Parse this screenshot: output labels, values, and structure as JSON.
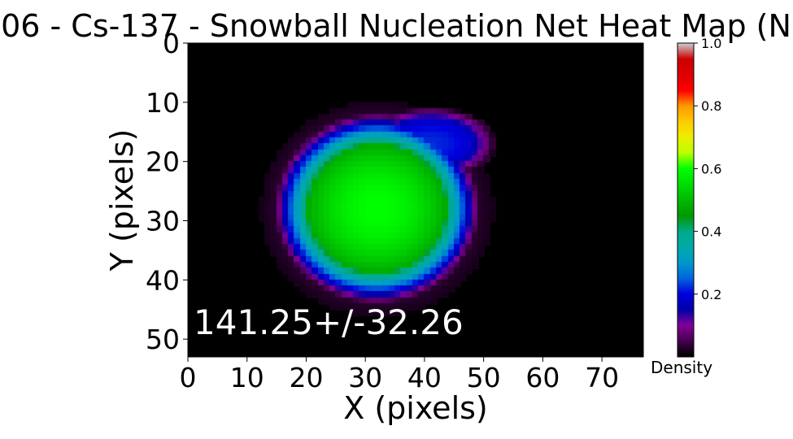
{
  "chart_data": {
    "type": "heatmap",
    "title": "06 - Cs-137 - Snowball Nucleation Net Heat Map (N",
    "xlabel": "X (pixels)",
    "ylabel": "Y (pixels)",
    "xlim": [
      0,
      77
    ],
    "ylim": [
      53,
      0
    ],
    "x_ticks": [
      0,
      10,
      20,
      30,
      40,
      50,
      60,
      70
    ],
    "y_ticks": [
      0,
      10,
      20,
      30,
      40,
      50
    ],
    "colormap": "nipy_spectral",
    "colorbar": {
      "label": "Density",
      "range": [
        0,
        1.0
      ],
      "ticks": [
        "0.2",
        "0.4",
        "0.6",
        "0.8",
        "1.0"
      ]
    },
    "annotation": "141.25+/-32.26",
    "blobs": [
      {
        "name": "main",
        "cx": 32,
        "cy": 28,
        "rx": 14,
        "ry": 13,
        "peak": 0.6
      },
      {
        "name": "upper-tail",
        "cx": 41,
        "cy": 17,
        "rx": 9,
        "ry": 5,
        "peak": 0.22
      }
    ]
  }
}
